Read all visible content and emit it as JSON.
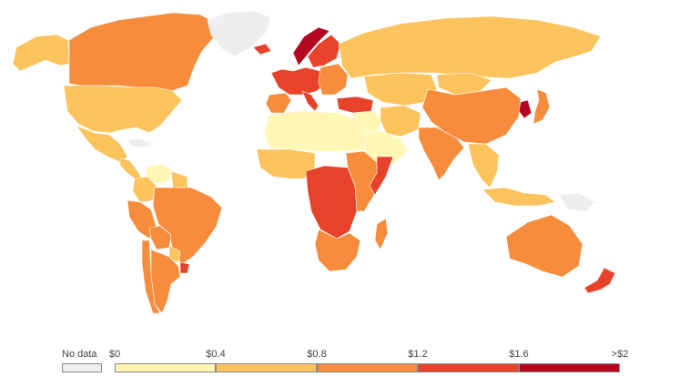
{
  "map": {
    "colors": {
      "no_data": "#eeeeee",
      "bin_0": "#fff7b3",
      "bin_1": "#fdc35c",
      "bin_2": "#f78c3c",
      "bin_3": "#e8432a",
      "bin_4": "#b5061f"
    },
    "regions": [
      {
        "name": "canada",
        "bin": 2
      },
      {
        "name": "alaska",
        "bin": 1
      },
      {
        "name": "greenland",
        "bin": -1
      },
      {
        "name": "united-states",
        "bin": 1
      },
      {
        "name": "mexico",
        "bin": 1
      },
      {
        "name": "central-america",
        "bin": 1
      },
      {
        "name": "cuba",
        "bin": -1
      },
      {
        "name": "venezuela",
        "bin": 0
      },
      {
        "name": "colombia",
        "bin": 1
      },
      {
        "name": "guianas",
        "bin": 1
      },
      {
        "name": "peru",
        "bin": 2
      },
      {
        "name": "brazil",
        "bin": 2
      },
      {
        "name": "bolivia",
        "bin": 2
      },
      {
        "name": "paraguay",
        "bin": 1
      },
      {
        "name": "chile",
        "bin": 2
      },
      {
        "name": "argentina",
        "bin": 2
      },
      {
        "name": "uruguay",
        "bin": 3
      },
      {
        "name": "iceland",
        "bin": 3
      },
      {
        "name": "norway",
        "bin": 4
      },
      {
        "name": "sweden-finland",
        "bin": 3
      },
      {
        "name": "western-europe",
        "bin": 3
      },
      {
        "name": "iberia",
        "bin": 2
      },
      {
        "name": "italy",
        "bin": 3
      },
      {
        "name": "eastern-europe",
        "bin": 2
      },
      {
        "name": "russia",
        "bin": 1
      },
      {
        "name": "kazakhstan-central-asia",
        "bin": 1
      },
      {
        "name": "turkey",
        "bin": 3
      },
      {
        "name": "middle-east",
        "bin": 0
      },
      {
        "name": "iran",
        "bin": 1
      },
      {
        "name": "arabia",
        "bin": 0
      },
      {
        "name": "north-africa",
        "bin": 0
      },
      {
        "name": "west-africa",
        "bin": 1
      },
      {
        "name": "central-africa",
        "bin": 3
      },
      {
        "name": "east-africa",
        "bin": 2
      },
      {
        "name": "somalia",
        "bin": 3
      },
      {
        "name": "southern-africa",
        "bin": 2
      },
      {
        "name": "madagascar",
        "bin": 2
      },
      {
        "name": "china",
        "bin": 2
      },
      {
        "name": "mongolia",
        "bin": 1
      },
      {
        "name": "south-asia",
        "bin": 2
      },
      {
        "name": "southeast-asia",
        "bin": 1
      },
      {
        "name": "korea",
        "bin": 4
      },
      {
        "name": "japan",
        "bin": 2
      },
      {
        "name": "indonesia",
        "bin": 1
      },
      {
        "name": "papua",
        "bin": -1
      },
      {
        "name": "australia",
        "bin": 2
      },
      {
        "name": "new-zealand",
        "bin": 3
      }
    ]
  },
  "legend": {
    "no_data_label": "No data",
    "ticks": [
      "$0",
      "$0.4",
      "$0.8",
      "$1.2",
      "$1.6",
      ">$2"
    ]
  }
}
